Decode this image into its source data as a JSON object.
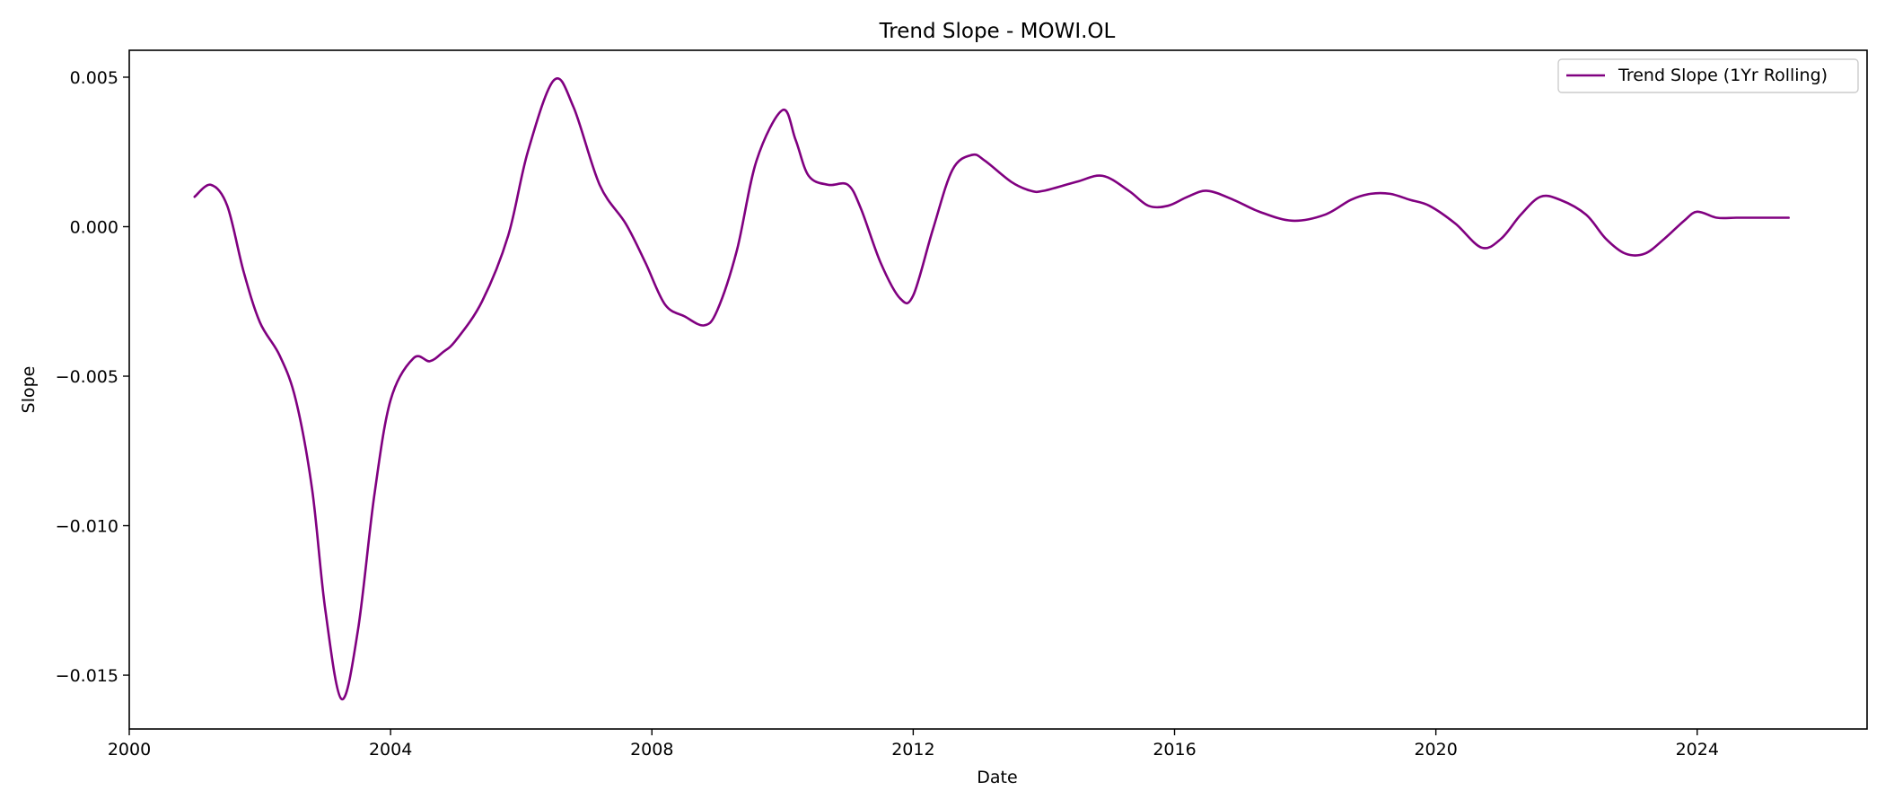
{
  "chart_data": {
    "type": "line",
    "title": "Trend Slope - MOWI.OL",
    "xlabel": "Date",
    "ylabel": "Slope",
    "xlim": [
      2000.0,
      2026.6
    ],
    "ylim": [
      -0.0168,
      0.0059
    ],
    "xticks": [
      2000,
      2004,
      2008,
      2012,
      2016,
      2020,
      2024
    ],
    "xtick_labels": [
      "2000",
      "2004",
      "2008",
      "2012",
      "2016",
      "2020",
      "2024"
    ],
    "yticks": [
      0.005,
      0.0,
      -0.005,
      -0.01,
      -0.015
    ],
    "ytick_labels": [
      "0.005",
      "0.000",
      "−0.005",
      "−0.010",
      "−0.015"
    ],
    "grid": false,
    "legend_position": "top-right",
    "series": [
      {
        "name": "Trend Slope (1Yr Rolling)",
        "color": "#800080",
        "x": [
          2001.0,
          2001.25,
          2001.5,
          2001.75,
          2002.0,
          2002.3,
          2002.55,
          2002.8,
          2003.0,
          2003.25,
          2003.5,
          2003.75,
          2004.0,
          2004.35,
          2004.6,
          2004.8,
          2005.0,
          2005.4,
          2005.8,
          2006.1,
          2006.5,
          2006.8,
          2007.2,
          2007.6,
          2007.9,
          2008.2,
          2008.5,
          2008.8,
          2009.0,
          2009.3,
          2009.6,
          2010.0,
          2010.2,
          2010.4,
          2010.7,
          2011.0,
          2011.2,
          2011.5,
          2011.8,
          2012.0,
          2012.3,
          2012.6,
          2012.9,
          2013.1,
          2013.5,
          2013.8,
          2014.0,
          2014.5,
          2014.9,
          2015.3,
          2015.6,
          2015.9,
          2016.2,
          2016.5,
          2016.9,
          2017.3,
          2017.8,
          2018.3,
          2018.7,
          2019.0,
          2019.3,
          2019.6,
          2019.9,
          2020.3,
          2020.7,
          2021.0,
          2021.3,
          2021.6,
          2021.9,
          2022.3,
          2022.6,
          2022.9,
          2023.2,
          2023.5,
          2023.8,
          2024.0,
          2024.3,
          2024.6,
          2025.0,
          2025.4
        ],
        "y": [
          0.001,
          0.0014,
          0.0007,
          -0.0015,
          -0.0032,
          -0.0043,
          -0.0058,
          -0.0088,
          -0.0128,
          -0.0158,
          -0.0135,
          -0.009,
          -0.0058,
          -0.0044,
          -0.0045,
          -0.0042,
          -0.0038,
          -0.0025,
          -0.0003,
          0.0025,
          0.0049,
          0.004,
          0.0014,
          0.0001,
          -0.0012,
          -0.0026,
          -0.003,
          -0.0033,
          -0.0028,
          -0.0008,
          0.0022,
          0.0039,
          0.0029,
          0.0017,
          0.0014,
          0.0014,
          0.0006,
          -0.0012,
          -0.0024,
          -0.0023,
          -0.0001,
          0.0019,
          0.0024,
          0.0022,
          0.0015,
          0.0012,
          0.0012,
          0.0015,
          0.0017,
          0.0012,
          0.0007,
          0.0007,
          0.001,
          0.0012,
          0.0009,
          0.0005,
          0.0002,
          0.0004,
          0.0009,
          0.0011,
          0.0011,
          0.0009,
          0.0007,
          0.0001,
          -0.0007,
          -0.0004,
          0.0004,
          0.001,
          0.0009,
          0.0004,
          -0.0004,
          -0.0009,
          -0.0009,
          -0.0004,
          0.0002,
          0.0005,
          0.0003,
          0.0003,
          0.0003,
          0.0003
        ]
      }
    ]
  }
}
